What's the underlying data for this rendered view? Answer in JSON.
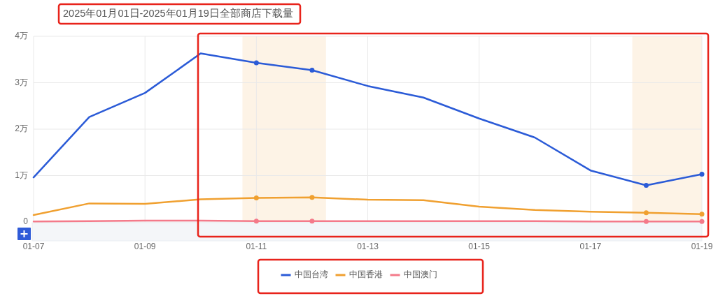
{
  "chart_data": {
    "type": "line",
    "title": "2025年01月01日-2025年01月19日全部商店下载量",
    "x": [
      "2025-01-07",
      "2025-01-08",
      "2025-01-09",
      "2025-01-10",
      "2025-01-11",
      "2025-01-12",
      "2025-01-13",
      "2025-01-14",
      "2025-01-15",
      "2025-01-16",
      "2025-01-17",
      "2025-01-18",
      "2025-01-19"
    ],
    "xlim": [
      "2025-01-07",
      "2025-01-19"
    ],
    "xticks": [
      {
        "value": "2025-01-07",
        "label": "01-07"
      },
      {
        "value": "2025-01-09",
        "label": "01-09"
      },
      {
        "value": "2025-01-11",
        "label": "01-11"
      },
      {
        "value": "2025-01-13",
        "label": "01-13"
      },
      {
        "value": "2025-01-15",
        "label": "01-15"
      },
      {
        "value": "2025-01-17",
        "label": "01-17"
      },
      {
        "value": "2025-01-19",
        "label": "01-19"
      }
    ],
    "ylim": [
      0,
      4
    ],
    "yticks": [
      0,
      {
        "value": 1,
        "label": "1万"
      },
      {
        "value": 2,
        "label": "2万"
      },
      {
        "value": 3,
        "label": "3万"
      },
      {
        "value": 4,
        "label": "4万"
      }
    ],
    "grid": true,
    "legend": "bottom",
    "bands": [
      {
        "axis": "x",
        "from": "2025-01-10T18:00",
        "to": "2025-01-12T06:00",
        "color": "#fdf3e6"
      },
      {
        "axis": "x",
        "from": "2025-01-17T18:00",
        "to": "2025-01-19",
        "color": "#fdf3e6"
      }
    ],
    "series": [
      {
        "name": "中国台湾",
        "color": "#2b5bd7",
        "values": [
          0.96,
          2.26,
          2.78,
          3.63,
          3.43,
          3.27,
          2.93,
          2.68,
          2.23,
          1.82,
          1.11,
          0.79,
          1.03
        ]
      },
      {
        "name": "中国香港",
        "color": "#f0a030",
        "values": [
          0.15,
          0.4,
          0.39,
          0.49,
          0.52,
          0.53,
          0.48,
          0.47,
          0.33,
          0.26,
          0.22,
          0.2,
          0.17
        ]
      },
      {
        "name": "中国澳门",
        "color": "#f47a8a",
        "values": [
          0.01,
          0.02,
          0.03,
          0.03,
          0.02,
          0.02,
          0.02,
          0.02,
          0.02,
          0.02,
          0.01,
          0.01,
          0.01
        ]
      }
    ]
  }
}
